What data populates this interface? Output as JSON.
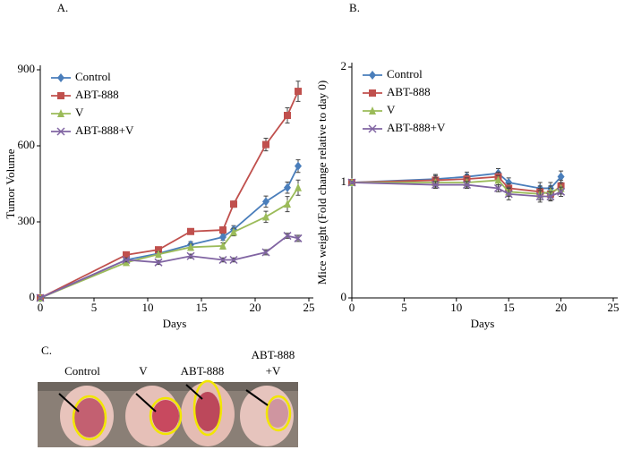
{
  "chart_data": [
    {
      "type": "line",
      "panel_label": "A.",
      "x_label": "Days",
      "y_label": "Tumor  Volume",
      "x": [
        0,
        8,
        11,
        14,
        17,
        18,
        21,
        23,
        24
      ],
      "xlim": [
        0,
        25
      ],
      "xticks": [
        0,
        5,
        10,
        15,
        20,
        25
      ],
      "ylim": [
        0,
        900
      ],
      "yticks": [
        0,
        300,
        600,
        900
      ],
      "grid": false,
      "legend": "upper left",
      "series": [
        {
          "name": "Control",
          "color": "#4a7ebb",
          "marker": "diamond",
          "values": [
            0,
            150,
            175,
            210,
            240,
            270,
            380,
            435,
            520
          ],
          "errors": [
            5,
            10,
            10,
            12,
            12,
            15,
            22,
            22,
            25
          ]
        },
        {
          "name": "ABT-888",
          "color": "#c0504d",
          "marker": "square",
          "values": [
            0,
            170,
            190,
            262,
            268,
            370,
            605,
            720,
            815
          ],
          "errors": [
            5,
            10,
            10,
            10,
            12,
            12,
            25,
            30,
            40
          ]
        },
        {
          "name": "V",
          "color": "#9bbb59",
          "marker": "triangle",
          "values": [
            0,
            140,
            172,
            200,
            205,
            260,
            320,
            370,
            435
          ],
          "errors": [
            5,
            10,
            10,
            12,
            12,
            15,
            22,
            30,
            30
          ]
        },
        {
          "name": "ABT-888+V",
          "color": "#8064a2",
          "marker": "x",
          "values": [
            0,
            150,
            140,
            165,
            150,
            150,
            180,
            245,
            235
          ],
          "errors": [
            5,
            8,
            8,
            8,
            8,
            8,
            10,
            10,
            12
          ]
        }
      ]
    },
    {
      "type": "line",
      "panel_label": "B.",
      "x_label": "Days",
      "y_label": "Mice weight (Fold change relative to day 0)",
      "x": [
        0,
        8,
        11,
        14,
        15,
        18,
        19,
        20
      ],
      "xlim": [
        0,
        25
      ],
      "xticks": [
        0,
        5,
        10,
        15,
        20,
        25
      ],
      "ylim": [
        0,
        2
      ],
      "yticks": [
        0,
        1,
        2
      ],
      "grid": false,
      "legend": "upper left",
      "series": [
        {
          "name": "Control",
          "color": "#4a7ebb",
          "marker": "diamond",
          "values": [
            1,
            1.03,
            1.05,
            1.08,
            1.0,
            0.95,
            0.95,
            1.05
          ],
          "errors": [
            0.01,
            0.04,
            0.04,
            0.04,
            0.04,
            0.05,
            0.05,
            0.05
          ]
        },
        {
          "name": "ABT-888",
          "color": "#c0504d",
          "marker": "square",
          "values": [
            1,
            1.02,
            1.03,
            1.05,
            0.95,
            0.92,
            0.9,
            0.97
          ],
          "errors": [
            0.01,
            0.04,
            0.04,
            0.04,
            0.04,
            0.05,
            0.05,
            0.05
          ]
        },
        {
          "name": "V",
          "color": "#9bbb59",
          "marker": "triangle",
          "values": [
            1,
            1.0,
            1.0,
            1.02,
            0.92,
            0.9,
            0.92,
            0.95
          ],
          "errors": [
            0.01,
            0.04,
            0.04,
            0.04,
            0.04,
            0.05,
            0.05,
            0.05
          ]
        },
        {
          "name": "ABT-888+V",
          "color": "#8064a2",
          "marker": "x",
          "values": [
            1,
            0.98,
            0.98,
            0.95,
            0.9,
            0.88,
            0.88,
            0.92
          ],
          "errors": [
            0.01,
            0.03,
            0.03,
            0.03,
            0.05,
            0.05,
            0.04,
            0.04
          ]
        }
      ]
    }
  ],
  "photo_panel": {
    "panel_label": "C.",
    "labels": [
      [
        "Control"
      ],
      [
        "V"
      ],
      [
        "ABT-888"
      ],
      [
        "ABT-888",
        "+V"
      ]
    ]
  }
}
